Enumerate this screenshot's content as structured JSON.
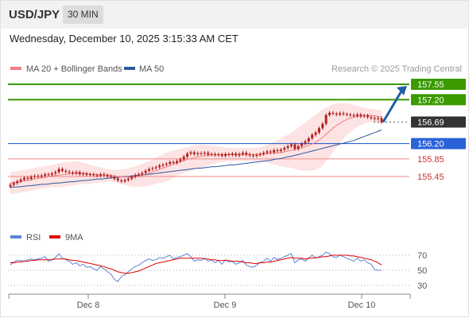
{
  "header": {
    "symbol": "USD/JPY",
    "timeframe": "30 MIN"
  },
  "datetime": "Wednesday, December 10, 2025 3:15:33 AM CET",
  "copyright": "Research © 2025 Trading Central",
  "colors": {
    "candle": "#b02020",
    "ma20": "#f08080",
    "bollinger_fill": "#fde0e0",
    "ma50": "#2c5aa0",
    "resistance": "#3a9a00",
    "pivot": "#2a62d8",
    "support": "#d03030",
    "current": "#333333",
    "rsi": "#5b84d6",
    "rsi_ma": "#e00000",
    "arrow": "#1f5fa8"
  },
  "chart_data": [
    {
      "type": "candlestick",
      "title": "USD/JPY",
      "timeframe": "30 MIN",
      "legend": [
        {
          "name": "MA 20 + Bollinger Bands",
          "color": "#f08080"
        },
        {
          "name": "MA 50",
          "color": "#2c5aa0"
        }
      ],
      "x_tick_labels": [
        "Dec 8",
        "Dec 9",
        "Dec 10"
      ],
      "ylim": [
        155.0,
        157.75
      ],
      "levels": [
        {
          "value": 157.55,
          "label": "157.55",
          "kind": "resistance"
        },
        {
          "value": 157.2,
          "label": "157.20",
          "kind": "resistance"
        },
        {
          "value": 156.69,
          "label": "156.69",
          "kind": "current"
        },
        {
          "value": 156.2,
          "label": "156.20",
          "kind": "pivot"
        },
        {
          "value": 155.85,
          "label": "155.85",
          "kind": "support"
        },
        {
          "value": 155.45,
          "label": "155.45",
          "kind": "support"
        }
      ],
      "close": [
        155.26,
        155.3,
        155.34,
        155.38,
        155.42,
        155.4,
        155.44,
        155.46,
        155.45,
        155.47,
        155.5,
        155.49,
        155.52,
        155.55,
        155.62,
        155.58,
        155.56,
        155.54,
        155.52,
        155.55,
        155.5,
        155.52,
        155.49,
        155.5,
        155.48,
        155.47,
        155.5,
        155.48,
        155.46,
        155.44,
        155.4,
        155.36,
        155.34,
        155.37,
        155.4,
        155.44,
        155.48,
        155.5,
        155.53,
        155.58,
        155.62,
        155.64,
        155.66,
        155.7,
        155.72,
        155.74,
        155.78,
        155.76,
        155.8,
        155.84,
        155.9,
        155.97,
        156.0,
        155.96,
        155.98,
        155.97,
        155.99,
        155.95,
        155.96,
        155.94,
        155.95,
        155.92,
        155.96,
        155.94,
        155.97,
        155.93,
        155.96,
        155.99,
        155.95,
        155.93,
        155.92,
        155.94,
        155.96,
        155.99,
        156.02,
        156.0,
        156.05,
        156.03,
        156.06,
        156.1,
        156.14,
        156.18,
        156.08,
        156.14,
        156.2,
        156.25,
        156.32,
        156.4,
        156.45,
        156.55,
        156.65,
        156.85,
        156.9,
        156.88,
        156.86,
        156.89,
        156.87,
        156.86,
        156.85,
        156.83,
        156.86,
        156.82,
        156.84,
        156.8,
        156.78,
        156.76,
        156.78,
        156.69
      ],
      "ma20": [
        155.3,
        155.31,
        155.32,
        155.33,
        155.35,
        155.36,
        155.38,
        155.39,
        155.41,
        155.42,
        155.43,
        155.45,
        155.46,
        155.47,
        155.48,
        155.49,
        155.5,
        155.51,
        155.52,
        155.53,
        155.52,
        155.52,
        155.51,
        155.5,
        155.5,
        155.49,
        155.49,
        155.48,
        155.48,
        155.47,
        155.46,
        155.45,
        155.44,
        155.44,
        155.44,
        155.44,
        155.45,
        155.46,
        155.48,
        155.5,
        155.52,
        155.55,
        155.58,
        155.61,
        155.64,
        155.67,
        155.7,
        155.73,
        155.76,
        155.79,
        155.81,
        155.84,
        155.86,
        155.88,
        155.9,
        155.91,
        155.92,
        155.93,
        155.94,
        155.94,
        155.95,
        155.95,
        155.95,
        155.95,
        155.95,
        155.95,
        155.95,
        155.95,
        155.95,
        155.95,
        155.95,
        155.95,
        155.96,
        155.96,
        155.97,
        155.97,
        155.98,
        155.99,
        156.0,
        156.01,
        156.03,
        156.05,
        156.06,
        156.08,
        156.1,
        156.13,
        156.16,
        156.19,
        156.23,
        156.28,
        156.34,
        156.41,
        156.48,
        156.55,
        156.61,
        156.66,
        156.71,
        156.75,
        156.78,
        156.8,
        156.82,
        156.83,
        156.84,
        156.84,
        156.84,
        156.83,
        156.82,
        156.8
      ],
      "bb_upper": [
        155.55,
        155.56,
        155.57,
        155.58,
        155.6,
        155.61,
        155.63,
        155.64,
        155.66,
        155.67,
        155.68,
        155.7,
        155.71,
        155.73,
        155.75,
        155.77,
        155.78,
        155.79,
        155.8,
        155.8,
        155.78,
        155.76,
        155.74,
        155.72,
        155.7,
        155.68,
        155.66,
        155.64,
        155.62,
        155.61,
        155.6,
        155.6,
        155.61,
        155.62,
        155.64,
        155.66,
        155.68,
        155.71,
        155.74,
        155.77,
        155.8,
        155.84,
        155.88,
        155.92,
        155.96,
        155.99,
        156.02,
        156.04,
        156.06,
        156.08,
        156.1,
        156.12,
        156.14,
        156.15,
        156.16,
        156.17,
        156.17,
        156.16,
        156.15,
        156.14,
        156.13,
        156.12,
        156.11,
        156.1,
        156.1,
        156.1,
        156.1,
        156.1,
        156.1,
        156.1,
        156.1,
        156.1,
        156.12,
        156.14,
        156.17,
        156.2,
        156.24,
        156.28,
        156.32,
        156.36,
        156.4,
        156.45,
        156.5,
        156.56,
        156.62,
        156.68,
        156.74,
        156.8,
        156.86,
        156.92,
        156.98,
        157.02,
        157.06,
        157.09,
        157.11,
        157.12,
        157.12,
        157.11,
        157.1,
        157.08,
        157.06,
        157.04,
        157.02,
        157.0,
        156.99,
        156.98,
        156.97,
        156.95
      ],
      "bb_lower": [
        155.05,
        155.06,
        155.07,
        155.08,
        155.1,
        155.11,
        155.13,
        155.14,
        155.16,
        155.17,
        155.18,
        155.2,
        155.21,
        155.21,
        155.21,
        155.21,
        155.22,
        155.23,
        155.24,
        155.26,
        155.26,
        155.28,
        155.28,
        155.28,
        155.3,
        155.3,
        155.32,
        155.32,
        155.34,
        155.33,
        155.32,
        155.3,
        155.27,
        155.26,
        155.24,
        155.22,
        155.22,
        155.21,
        155.22,
        155.23,
        155.24,
        155.26,
        155.28,
        155.3,
        155.32,
        155.35,
        155.38,
        155.42,
        155.46,
        155.5,
        155.52,
        155.56,
        155.58,
        155.61,
        155.64,
        155.65,
        155.67,
        155.7,
        155.73,
        155.74,
        155.77,
        155.78,
        155.79,
        155.8,
        155.8,
        155.8,
        155.8,
        155.8,
        155.8,
        155.8,
        155.8,
        155.8,
        155.8,
        155.78,
        155.77,
        155.74,
        155.72,
        155.7,
        155.68,
        155.66,
        155.66,
        155.65,
        155.62,
        155.6,
        155.58,
        155.58,
        155.58,
        155.58,
        155.6,
        155.64,
        155.7,
        155.8,
        155.9,
        156.01,
        156.11,
        156.2,
        156.3,
        156.39,
        156.46,
        156.52,
        156.58,
        156.62,
        156.66,
        156.68,
        156.69,
        156.68,
        156.67,
        156.65
      ],
      "ma50": [
        155.2,
        155.21,
        155.21,
        155.22,
        155.23,
        155.24,
        155.24,
        155.25,
        155.26,
        155.27,
        155.27,
        155.28,
        155.29,
        155.3,
        155.3,
        155.31,
        155.32,
        155.33,
        155.33,
        155.34,
        155.35,
        155.36,
        155.36,
        155.37,
        155.38,
        155.39,
        155.39,
        155.4,
        155.41,
        155.42,
        155.42,
        155.43,
        155.44,
        155.45,
        155.45,
        155.46,
        155.47,
        155.48,
        155.48,
        155.49,
        155.5,
        155.51,
        155.52,
        155.53,
        155.54,
        155.55,
        155.56,
        155.57,
        155.58,
        155.59,
        155.6,
        155.61,
        155.62,
        155.63,
        155.64,
        155.64,
        155.65,
        155.66,
        155.67,
        155.67,
        155.68,
        155.69,
        155.7,
        155.71,
        155.71,
        155.72,
        155.73,
        155.74,
        155.75,
        155.76,
        155.77,
        155.78,
        155.79,
        155.8,
        155.81,
        155.82,
        155.84,
        155.85,
        155.86,
        155.88,
        155.9,
        155.91,
        155.93,
        155.95,
        155.97,
        155.99,
        156.01,
        156.03,
        156.05,
        156.07,
        156.09,
        156.11,
        156.13,
        156.15,
        156.17,
        156.19,
        156.21,
        156.23,
        156.25,
        156.27,
        156.3,
        156.33,
        156.36,
        156.39,
        156.42,
        156.45,
        156.48,
        156.51
      ],
      "arrow_target": 157.55
    },
    {
      "type": "line",
      "legend": [
        {
          "name": "RSI",
          "color": "#5b84d6"
        },
        {
          "name": "9MA",
          "color": "#e00000"
        }
      ],
      "y_tick_labels": [
        "70",
        "50",
        "30"
      ],
      "ylim": [
        25,
        80
      ],
      "rsi": [
        57,
        61,
        63,
        63,
        62,
        64,
        65,
        64,
        65,
        66,
        68,
        62,
        64,
        67,
        72,
        66,
        64,
        62,
        58,
        60,
        56,
        58,
        54,
        55,
        52,
        50,
        55,
        52,
        48,
        45,
        38,
        35,
        42,
        44,
        48,
        52,
        55,
        57,
        60,
        63,
        65,
        63,
        64,
        67,
        66,
        68,
        70,
        65,
        67,
        68,
        70,
        72,
        68,
        62,
        64,
        63,
        66,
        62,
        64,
        60,
        63,
        58,
        64,
        61,
        62,
        58,
        60,
        63,
        57,
        55,
        54,
        57,
        60,
        62,
        66,
        62,
        67,
        64,
        66,
        68,
        70,
        72,
        60,
        64,
        65,
        62,
        66,
        70,
        66,
        68,
        70,
        74,
        72,
        68,
        67,
        70,
        68,
        66,
        64,
        62,
        66,
        62,
        64,
        60,
        58,
        51,
        50,
        50
      ],
      "rsi_ma": [
        60,
        60,
        61,
        61,
        62,
        62,
        63,
        63,
        64,
        64,
        64,
        64,
        64,
        65,
        65,
        65,
        65,
        64,
        63,
        63,
        62,
        61,
        60,
        59,
        58,
        57,
        56,
        55,
        53,
        52,
        50,
        48,
        47,
        46,
        46,
        47,
        48,
        49,
        51,
        53,
        55,
        57,
        59,
        60,
        61,
        62,
        63,
        64,
        65,
        66,
        66,
        66,
        66,
        66,
        66,
        66,
        65,
        65,
        64,
        64,
        63,
        63,
        63,
        63,
        62,
        62,
        62,
        61,
        60,
        60,
        59,
        59,
        60,
        60,
        61,
        61,
        62,
        63,
        64,
        65,
        66,
        67,
        66,
        66,
        66,
        65,
        66,
        66,
        67,
        67,
        68,
        68,
        69,
        70,
        70,
        70,
        70,
        70,
        69,
        69,
        68,
        67,
        66,
        65,
        64,
        62,
        60,
        57
      ]
    }
  ]
}
